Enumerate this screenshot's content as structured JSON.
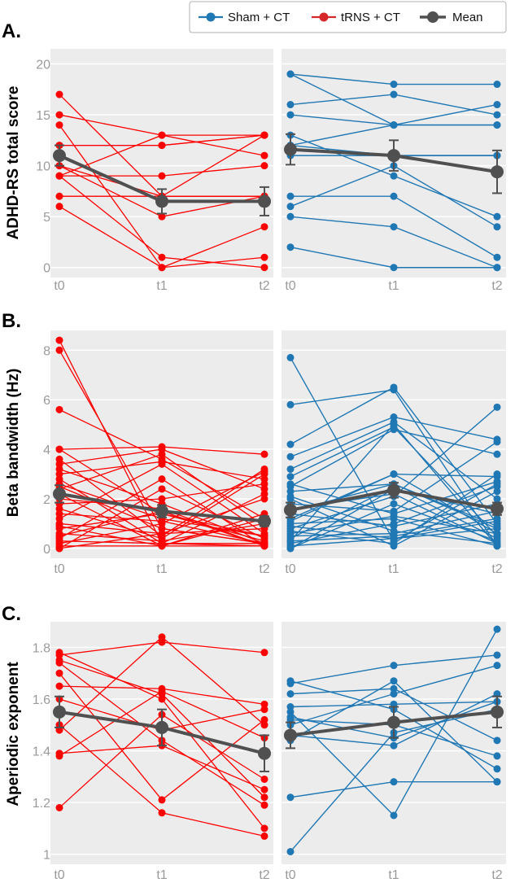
{
  "legend": {
    "items": [
      {
        "label": "Sham + CT",
        "color": "#1f77b4"
      },
      {
        "label": "tRNS + CT",
        "color": "#d62728"
      },
      {
        "label": "Mean",
        "color": "#505050"
      }
    ]
  },
  "colors": {
    "trns_line": "#ff0000",
    "sham_line": "#1f77b4",
    "mean": "#505050",
    "panel_bg": "#ececec"
  },
  "chart_data": [
    {
      "type": "line",
      "panel_label": "A.",
      "ylabel": "ADHD-RS total score",
      "x": [
        "t0",
        "t1",
        "t2"
      ],
      "ylim": [
        -0.5,
        21
      ],
      "yticks": [
        "0",
        "5",
        "10",
        "15",
        "20"
      ],
      "ytick_values": [
        0,
        5,
        10,
        15,
        20
      ],
      "left": {
        "group": "tRNS + CT",
        "series": [
          [
            17,
            7,
            7
          ],
          [
            15,
            13,
            13
          ],
          [
            14,
            0,
            1
          ],
          [
            12,
            12,
            13
          ],
          [
            12,
            12,
            13
          ],
          [
            10,
            7,
            13
          ],
          [
            10,
            5,
            7
          ],
          [
            9,
            13,
            11
          ],
          [
            9,
            9,
            10
          ],
          [
            9,
            1,
            0
          ],
          [
            7,
            7,
            7
          ],
          [
            6,
            0,
            4
          ]
        ],
        "mean": [
          11,
          6.5,
          6.5
        ],
        "err": [
          1.0,
          1.2,
          1.4
        ]
      },
      "right": {
        "group": "Sham + CT",
        "series": [
          [
            19,
            18,
            18
          ],
          [
            19,
            14,
            16
          ],
          [
            16,
            17,
            15
          ],
          [
            15,
            14,
            14
          ],
          [
            13,
            9,
            5
          ],
          [
            12,
            11,
            11
          ],
          [
            11,
            11,
            11
          ],
          [
            7,
            7,
            1
          ],
          [
            6,
            10,
            4
          ],
          [
            5,
            4,
            0
          ],
          [
            2,
            0,
            0
          ],
          [
            12,
            14,
            14
          ]
        ],
        "mean": [
          11.6,
          11,
          9.4
        ],
        "err": [
          1.5,
          1.5,
          2.1
        ]
      }
    },
    {
      "type": "line",
      "panel_label": "B.",
      "ylabel": "Beta bandwidth (Hz)",
      "x": [
        "t0",
        "t1",
        "t2"
      ],
      "ylim": [
        -0.2,
        8.6
      ],
      "yticks": [
        "0",
        "2",
        "4",
        "6",
        "8"
      ],
      "ytick_values": [
        0,
        2,
        4,
        6,
        8
      ],
      "left": {
        "group": "tRNS + CT",
        "series": [
          [
            8.4,
            0.2,
            0.1
          ],
          [
            8,
            0.8,
            0.2
          ],
          [
            5.6,
            3.6,
            1.2
          ],
          [
            4,
            4.1,
            3.8
          ],
          [
            4,
            1.4,
            0.5
          ],
          [
            3.6,
            0.5,
            3.2
          ],
          [
            3.4,
            4,
            2.4
          ],
          [
            3.2,
            1.8,
            0.2
          ],
          [
            3,
            3.5,
            2.8
          ],
          [
            2.8,
            0.2,
            2.2
          ],
          [
            2.6,
            1.2,
            0.5
          ],
          [
            2.4,
            3.8,
            0.9
          ],
          [
            2.2,
            0.1,
            1.4
          ],
          [
            2,
            1.6,
            0.1
          ],
          [
            1.8,
            2,
            2.6
          ],
          [
            1.6,
            0.4,
            3
          ],
          [
            1.4,
            1.1,
            0.2
          ],
          [
            1.2,
            3.4,
            0.6
          ],
          [
            1,
            0.6,
            2
          ],
          [
            0.9,
            0.1,
            1.2
          ],
          [
            0.8,
            1.4,
            0.3
          ],
          [
            0.6,
            0.3,
            1
          ],
          [
            0.4,
            2.8,
            0.1
          ],
          [
            0.3,
            0.2,
            0.2
          ],
          [
            0.2,
            1,
            3.1
          ],
          [
            0.1,
            0.1,
            0.1
          ],
          [
            0,
            0.6,
            0.8
          ],
          [
            0,
            2.4,
            0.4
          ],
          [
            0.5,
            1.5,
            0.1
          ],
          [
            2.5,
            0.8,
            0.2
          ]
        ],
        "mean": [
          2.2,
          1.5,
          1.1
        ],
        "err": [
          0.35,
          0.25,
          0.2
        ]
      },
      "right": {
        "group": "Sham + CT",
        "series": [
          [
            7.7,
            0.3,
            2.6
          ],
          [
            5.8,
            6.4,
            0.1
          ],
          [
            4.2,
            6.5,
            1
          ],
          [
            3.7,
            5.3,
            4.4
          ],
          [
            3.2,
            5.1,
            2
          ],
          [
            2.9,
            4.9,
            0.5
          ],
          [
            2.5,
            4.8,
            3.8
          ],
          [
            2.3,
            2.6,
            0.8
          ],
          [
            2,
            0.1,
            2.3
          ],
          [
            1.8,
            1.5,
            4.3
          ],
          [
            1.6,
            2.2,
            0.2
          ],
          [
            1.4,
            0.9,
            1.8
          ],
          [
            1.2,
            3,
            2.9
          ],
          [
            1,
            1.2,
            0.1
          ],
          [
            0.9,
            0.4,
            1.1
          ],
          [
            0.8,
            2.1,
            5.7
          ],
          [
            0.6,
            1.3,
            0.6
          ],
          [
            0.5,
            0.6,
            1.5
          ],
          [
            0.4,
            2.5,
            0.4
          ],
          [
            0.3,
            5,
            0.1
          ],
          [
            0.2,
            1,
            2.5
          ],
          [
            0.1,
            0.4,
            0.8
          ],
          [
            0,
            1.8,
            0.3
          ],
          [
            0,
            2.4,
            1.4
          ],
          [
            0.7,
            0.2,
            3
          ],
          [
            1.5,
            2.6,
            0.9
          ],
          [
            2.6,
            1.4,
            2.7
          ],
          [
            0.3,
            0.5,
            1.2
          ],
          [
            1.1,
            3,
            0.6
          ],
          [
            2.1,
            0.7,
            0.2
          ]
        ],
        "mean": [
          1.55,
          2.35,
          1.6
        ],
        "err": [
          0.3,
          0.3,
          0.25
        ]
      }
    },
    {
      "type": "line",
      "panel_label": "C.",
      "ylabel": "Aperiodic exponent",
      "x": [
        "t0",
        "t1",
        "t2"
      ],
      "ylim": [
        0.98,
        1.88
      ],
      "yticks": [
        "1",
        "1.2",
        "1.4",
        "1.6",
        "1.8"
      ],
      "ytick_values": [
        1,
        1.2,
        1.4,
        1.6,
        1.8
      ],
      "left": {
        "group": "tRNS + CT",
        "series": [
          [
            1.78,
            1.6,
            1.1
          ],
          [
            1.77,
            1.82,
            1.78
          ],
          [
            1.75,
            1.62,
            1.22
          ],
          [
            1.74,
            1.44,
            1.19
          ],
          [
            1.7,
            1.21,
            1.52
          ],
          [
            1.65,
            1.64,
            1.58
          ],
          [
            1.6,
            1.48,
            1.56
          ],
          [
            1.5,
            1.16,
            1.07
          ],
          [
            1.48,
            1.84,
            1.5
          ],
          [
            1.39,
            1.42,
            1.25
          ],
          [
            1.38,
            1.63,
            1.45
          ],
          [
            1.18,
            1.54,
            1.29
          ]
        ],
        "mean": [
          1.55,
          1.49,
          1.39
        ],
        "err": [
          0.06,
          0.07,
          0.07
        ]
      },
      "right": {
        "group": "Sham + CT",
        "series": [
          [
            1.67,
            1.56,
            1.33
          ],
          [
            1.66,
            1.73,
            1.77
          ],
          [
            1.62,
            1.64,
            1.44
          ],
          [
            1.57,
            1.58,
            1.59
          ],
          [
            1.55,
            1.15,
            1.87
          ],
          [
            1.52,
            1.5,
            1.38
          ],
          [
            1.5,
            1.62,
            1.73
          ],
          [
            1.46,
            1.42,
            1.62
          ],
          [
            1.44,
            1.67,
            1.28
          ],
          [
            1.22,
            1.28,
            1.28
          ],
          [
            1.01,
            1.47,
            1.56
          ],
          [
            1.53,
            1.45,
            1.59
          ]
        ],
        "mean": [
          1.46,
          1.51,
          1.55
        ],
        "err": [
          0.05,
          0.06,
          0.06
        ]
      }
    }
  ]
}
